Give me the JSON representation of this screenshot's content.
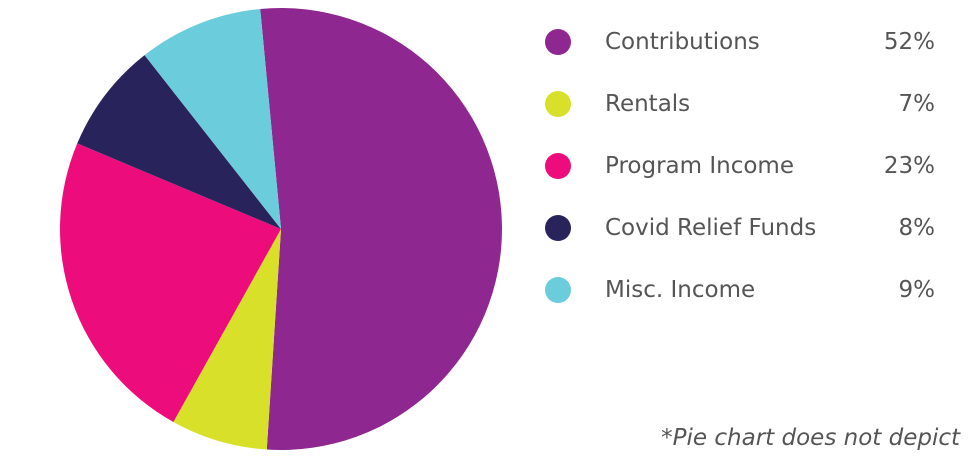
{
  "chart_data": {
    "type": "pie",
    "categories": [
      "Contributions",
      "Rentals",
      "Program Income",
      "Covid Relief Funds",
      "Misc. Income"
    ],
    "values": [
      52,
      7,
      23,
      8,
      9
    ],
    "value_labels": [
      "52%",
      "7%",
      "23%",
      "8%",
      "9%"
    ],
    "colors": [
      "#8e278f",
      "#d9e02a",
      "#ec0c7b",
      "#29235c",
      "#6bccdb"
    ],
    "footnote": "*Pie chart does not depict"
  }
}
